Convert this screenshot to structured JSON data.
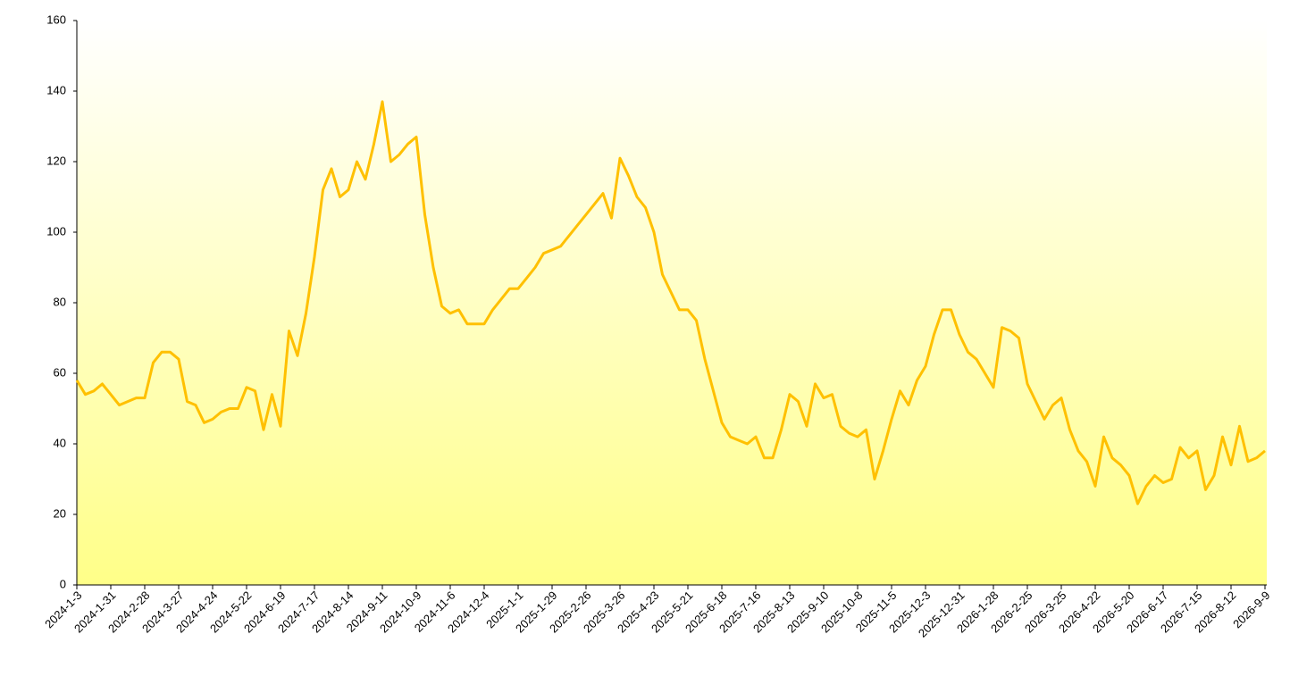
{
  "chart_data": {
    "type": "line",
    "categories": [
      "2024-1-3",
      null,
      null,
      null,
      "2024-1-31",
      null,
      null,
      null,
      "2024-2-28",
      null,
      null,
      null,
      "2024-3-27",
      null,
      null,
      null,
      "2024-4-24",
      null,
      null,
      null,
      "2024-5-22",
      null,
      null,
      null,
      "2024-6-19",
      null,
      null,
      null,
      "2024-7-17",
      null,
      null,
      null,
      "2024-8-14",
      null,
      null,
      null,
      "2024-9-11",
      null,
      null,
      null,
      "2024-10-9",
      null,
      null,
      null,
      "2024-11-6",
      null,
      null,
      null,
      "2024-12-4",
      null,
      null,
      null,
      "2025-1-1",
      null,
      null,
      null,
      "2025-1-29",
      null,
      null,
      null,
      "2025-2-26",
      null,
      null,
      null,
      "2025-3-26",
      null,
      null,
      null,
      "2025-4-23",
      null,
      null,
      null,
      "2025-5-21",
      null,
      null,
      null,
      "2025-6-18",
      null,
      null,
      null,
      "2025-7-16",
      null,
      null,
      null,
      "2025-8-13",
      null,
      null,
      null,
      "2025-9-10",
      null,
      null,
      null,
      "2025-10-8",
      null,
      null,
      null,
      "2025-11-5",
      null,
      null,
      null,
      "2025-12-3",
      null,
      null,
      null,
      "2025-12-31",
      null,
      null,
      null,
      "2026-1-28",
      null,
      null,
      null,
      "2026-2-25",
      null,
      null,
      null,
      "2026-3-25",
      null,
      null,
      null,
      "2026-4-22",
      null,
      null,
      null,
      "2026-5-20",
      null,
      null,
      null,
      "2026-6-17",
      null,
      null,
      null,
      "2026-7-15",
      null,
      null,
      null,
      "2026-8-12",
      null,
      null,
      null,
      "2026-9-9"
    ],
    "values": [
      58,
      54,
      55,
      57,
      54,
      51,
      52,
      53,
      53,
      63,
      66,
      66,
      64,
      52,
      51,
      46,
      47,
      49,
      50,
      50,
      56,
      55,
      44,
      54,
      45,
      72,
      65,
      77,
      93,
      112,
      118,
      110,
      112,
      120,
      115,
      125,
      137,
      120,
      122,
      125,
      127,
      105,
      90,
      79,
      77,
      78,
      74,
      74,
      74,
      78,
      81,
      84,
      84,
      87,
      90,
      94,
      95,
      96,
      99,
      102,
      105,
      108,
      111,
      104,
      121,
      116,
      110,
      107,
      100,
      88,
      83,
      78,
      78,
      75,
      64,
      55,
      46,
      42,
      41,
      40,
      42,
      36,
      36,
      44,
      54,
      52,
      45,
      57,
      53,
      54,
      45,
      43,
      42,
      44,
      30,
      38,
      47,
      55,
      51,
      58,
      62,
      71,
      78,
      78,
      71,
      66,
      64,
      60,
      56,
      73,
      72,
      70,
      57,
      52,
      47,
      51,
      53,
      44,
      38,
      35,
      28,
      42,
      36,
      34,
      31,
      23,
      28,
      31,
      29,
      30,
      39,
      36,
      38,
      27,
      31,
      42,
      34,
      45,
      35,
      36,
      38
    ],
    "color": "#ffc000",
    "ylim": [
      0,
      160
    ],
    "yticks": [
      0,
      20,
      40,
      60,
      80,
      100,
      120,
      140,
      160
    ]
  }
}
